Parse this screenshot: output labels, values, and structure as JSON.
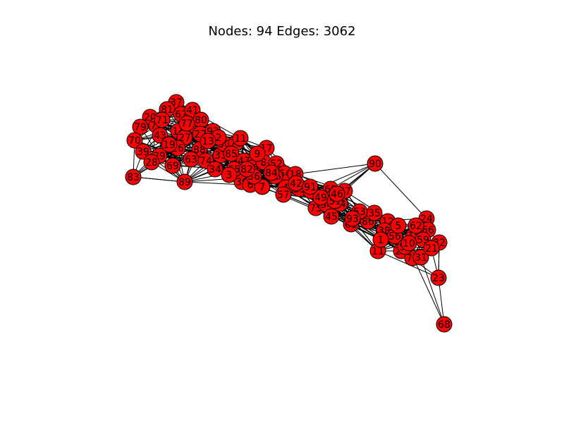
{
  "title": "Nodes: 94 Edges: 3062",
  "colors": {
    "node_fill": "#ff0000",
    "node_stroke": "#000000",
    "edge": "#000000",
    "label": "#000000",
    "background": "#ffffff"
  },
  "nodes": [
    {
      "id": "37"
    },
    {
      "id": "81"
    },
    {
      "id": "67"
    },
    {
      "id": "41"
    },
    {
      "id": "20"
    },
    {
      "id": "79"
    },
    {
      "id": "72"
    },
    {
      "id": "43"
    },
    {
      "id": "14"
    },
    {
      "id": "40"
    },
    {
      "id": "80"
    },
    {
      "id": "27"
    },
    {
      "id": "22"
    },
    {
      "id": "92"
    },
    {
      "id": "70"
    },
    {
      "id": "39"
    },
    {
      "id": "29"
    },
    {
      "id": "26"
    },
    {
      "id": "88"
    },
    {
      "id": "63"
    },
    {
      "id": "74"
    },
    {
      "id": "33"
    },
    {
      "id": "50"
    },
    {
      "id": "78"
    },
    {
      "id": "11"
    },
    {
      "id": "17"
    },
    {
      "id": "85"
    },
    {
      "id": "47"
    },
    {
      "id": "83"
    },
    {
      "id": "89"
    },
    {
      "id": "30"
    },
    {
      "id": "65"
    },
    {
      "id": "76"
    },
    {
      "id": "8"
    },
    {
      "id": "9"
    },
    {
      "id": "52"
    },
    {
      "id": "64"
    },
    {
      "id": "18"
    },
    {
      "id": "4"
    },
    {
      "id": "57"
    },
    {
      "id": "55"
    },
    {
      "id": "48"
    },
    {
      "id": "60"
    },
    {
      "id": "87"
    },
    {
      "id": "90"
    },
    {
      "id": "75"
    },
    {
      "id": "54"
    },
    {
      "id": "44"
    },
    {
      "id": "45"
    },
    {
      "id": "61"
    },
    {
      "id": "86"
    },
    {
      "id": "35"
    },
    {
      "id": "12"
    },
    {
      "id": "38"
    },
    {
      "id": "24"
    },
    {
      "id": "66"
    },
    {
      "id": "15"
    },
    {
      "id": "32"
    },
    {
      "id": "11"
    },
    {
      "id": "25"
    },
    {
      "id": "73"
    },
    {
      "id": "31"
    },
    {
      "id": "23"
    },
    {
      "id": "68"
    },
    {
      "id": "3"
    },
    {
      "id": "6"
    },
    {
      "id": "7"
    },
    {
      "id": "16"
    },
    {
      "id": "2"
    },
    {
      "id": "13"
    },
    {
      "id": "19"
    },
    {
      "id": "28"
    },
    {
      "id": "34"
    },
    {
      "id": "36"
    },
    {
      "id": "42"
    },
    {
      "id": "49"
    },
    {
      "id": "51"
    },
    {
      "id": "53"
    },
    {
      "id": "56"
    },
    {
      "id": "58"
    },
    {
      "id": "59"
    },
    {
      "id": "62"
    },
    {
      "id": "69"
    },
    {
      "id": "71"
    },
    {
      "id": "77"
    },
    {
      "id": "82"
    },
    {
      "id": "84"
    },
    {
      "id": "91"
    },
    {
      "id": "93"
    },
    {
      "id": "1"
    },
    {
      "id": "5"
    },
    {
      "id": "10"
    },
    {
      "id": "21"
    },
    {
      "id": "46"
    }
  ]
}
